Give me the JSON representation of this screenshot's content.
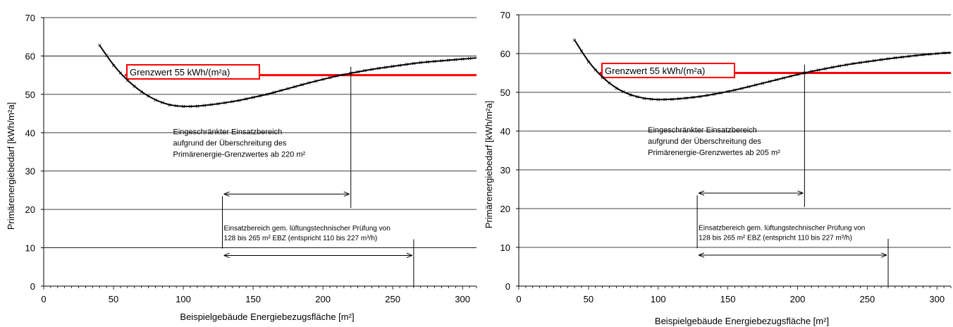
{
  "chart_data": [
    {
      "type": "line",
      "title": "",
      "xlabel": "Beispielgebäude   Energiebezugsfläche  [m²]",
      "ylabel": "Primärenergiebedarf  [kWh/m²a]",
      "xlim": [
        0,
        310
      ],
      "ylim": [
        0,
        70
      ],
      "xticks": [
        "0",
        "50",
        "100",
        "150",
        "200",
        "250",
        "300"
      ],
      "yticks": [
        "0",
        "10",
        "20",
        "30",
        "40",
        "50",
        "60",
        "70"
      ],
      "grid": "horizontal",
      "series": [
        {
          "name": "",
          "x": [
            40,
            50,
            60,
            70,
            80,
            90,
            100,
            110,
            120,
            130,
            140,
            150,
            160,
            170,
            180,
            190,
            200,
            210,
            220,
            230,
            240,
            250,
            260,
            270,
            280,
            290,
            300,
            310
          ],
          "values": [
            62.8,
            57.5,
            53.6,
            50.6,
            48.5,
            47.2,
            46.8,
            46.9,
            47.3,
            47.8,
            48.4,
            49.2,
            50.0,
            51.0,
            52.0,
            53.0,
            53.9,
            54.8,
            55.5,
            56.2,
            56.8,
            57.3,
            57.8,
            58.3,
            58.6,
            58.9,
            59.2,
            59.5
          ]
        }
      ],
      "limit_line": {
        "value": 55,
        "x_from": 40,
        "x_to": 310,
        "label": "Grenzwert 55 kWh/(m²a)",
        "color": "#ff0000"
      },
      "restricted_range": {
        "from": 128,
        "to": 220,
        "marker_x": 220,
        "text": [
          "Eingeschränkter Einsatzbereich",
          "aufgrund der Überschreitung des",
          "Primärenergie-Grenzwertes ab 220 m²"
        ]
      },
      "tested_range": {
        "from": 128,
        "to": 265,
        "text": [
          "Einsatzbereich gem. lüftungstechnischer Prüfung von",
          "128 bis 265 m² EBZ (entspricht 110 bis 227 m³/h)"
        ]
      }
    },
    {
      "type": "line",
      "title": "",
      "xlabel": "Beispielgebäude   Energiebezugsfläche  [m²]",
      "ylabel": "Primärenergiebedarf  [kWh/m²a]",
      "xlim": [
        0,
        310
      ],
      "ylim": [
        0,
        70
      ],
      "xticks": [
        "0",
        "50",
        "100",
        "150",
        "200",
        "250",
        "300"
      ],
      "yticks": [
        "0",
        "10",
        "20",
        "30",
        "40",
        "50",
        "60",
        "70"
      ],
      "grid": "horizontal",
      "series": [
        {
          "name": "",
          "x": [
            40,
            50,
            60,
            70,
            80,
            90,
            100,
            110,
            120,
            130,
            140,
            150,
            160,
            170,
            180,
            190,
            200,
            210,
            220,
            230,
            240,
            250,
            260,
            270,
            280,
            290,
            300,
            310
          ],
          "values": [
            63.5,
            57.8,
            53.8,
            51.0,
            49.3,
            48.4,
            48.1,
            48.2,
            48.5,
            48.9,
            49.5,
            50.2,
            51.0,
            51.9,
            52.8,
            53.7,
            54.6,
            55.4,
            56.1,
            56.8,
            57.4,
            57.9,
            58.4,
            58.9,
            59.3,
            59.7,
            60.0,
            60.3
          ]
        }
      ],
      "limit_line": {
        "value": 55,
        "x_from": 40,
        "x_to": 310,
        "label": "Grenzwert 55 kWh/(m²a)",
        "color": "#ff0000"
      },
      "restricted_range": {
        "from": 128,
        "to": 205,
        "marker_x": 205,
        "text": [
          "Eingeschränkter Einsatzbereich",
          "aufgrund der Überschreitung des",
          "Primärenergie-Grenzwertes ab 205 m²"
        ]
      },
      "tested_range": {
        "from": 128,
        "to": 265,
        "text": [
          "Einsatzbereich gem. lüftungstechnischer Prüfung von",
          "128 bis 265 m² EBZ (entspricht 110 bis 227 m³/h)"
        ]
      }
    }
  ]
}
